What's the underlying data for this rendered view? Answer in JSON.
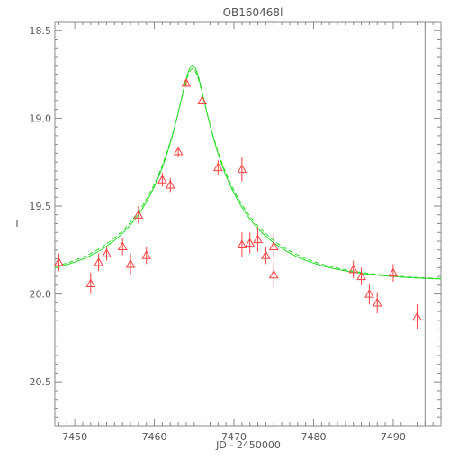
{
  "chart_data": {
    "type": "scatter",
    "title": "OB160468l",
    "xlabel": "JD - 2450000",
    "ylabel": "I",
    "xlim": [
      7447.5,
      7496
    ],
    "ylim": [
      20.75,
      18.45
    ],
    "y_inverted": true,
    "x_ticks": [
      7450,
      7460,
      7470,
      7480,
      7490
    ],
    "y_ticks": [
      18.5,
      19.0,
      19.5,
      20.0,
      20.5
    ],
    "x_tick_labels": [
      "7450",
      "7460",
      "7470",
      "7480",
      "7490"
    ],
    "y_tick_labels": [
      "18.5",
      "19.0",
      "19.5",
      "20.0",
      "20.5"
    ],
    "grid": false,
    "reference_line_x": 7494,
    "series": [
      {
        "kind": "points",
        "marker": "triangle-open",
        "color": "#ff4040",
        "points": [
          {
            "x": 7448.0,
            "y": 19.82,
            "err": 0.05
          },
          {
            "x": 7452.0,
            "y": 19.94,
            "err": 0.06
          },
          {
            "x": 7453.0,
            "y": 19.82,
            "err": 0.05
          },
          {
            "x": 7454.0,
            "y": 19.77,
            "err": 0.04
          },
          {
            "x": 7456.0,
            "y": 19.73,
            "err": 0.05
          },
          {
            "x": 7457.0,
            "y": 19.83,
            "err": 0.06
          },
          {
            "x": 7458.0,
            "y": 19.55,
            "err": 0.05
          },
          {
            "x": 7459.0,
            "y": 19.78,
            "err": 0.05
          },
          {
            "x": 7461.0,
            "y": 19.35,
            "err": 0.04
          },
          {
            "x": 7462.0,
            "y": 19.38,
            "err": 0.04
          },
          {
            "x": 7463.0,
            "y": 19.19,
            "err": 0.03
          },
          {
            "x": 7464.0,
            "y": 18.8,
            "err": 0.02
          },
          {
            "x": 7466.0,
            "y": 18.9,
            "err": 0.02
          },
          {
            "x": 7468.0,
            "y": 19.28,
            "err": 0.04
          },
          {
            "x": 7471.0,
            "y": 19.72,
            "err": 0.07
          },
          {
            "x": 7471.0,
            "y": 19.29,
            "err": 0.07
          },
          {
            "x": 7472.0,
            "y": 19.71,
            "err": 0.06
          },
          {
            "x": 7473.0,
            "y": 19.69,
            "err": 0.07
          },
          {
            "x": 7474.0,
            "y": 19.78,
            "err": 0.05
          },
          {
            "x": 7475.0,
            "y": 19.73,
            "err": 0.07
          },
          {
            "x": 7475.0,
            "y": 19.89,
            "err": 0.07
          },
          {
            "x": 7485.0,
            "y": 19.86,
            "err": 0.05
          },
          {
            "x": 7486.0,
            "y": 19.9,
            "err": 0.05
          },
          {
            "x": 7487.0,
            "y": 20.0,
            "err": 0.06
          },
          {
            "x": 7488.0,
            "y": 20.05,
            "err": 0.06
          },
          {
            "x": 7490.0,
            "y": 19.88,
            "err": 0.05
          },
          {
            "x": 7493.0,
            "y": 20.13,
            "err": 0.07
          }
        ]
      },
      {
        "kind": "model-curve",
        "style": "solid",
        "color": "#22dd22",
        "peak_x": 7464.8,
        "peak_y": 18.7,
        "baseline_y": 19.93,
        "x_range": [
          7447.5,
          7496
        ]
      },
      {
        "kind": "model-curve",
        "style": "dashed",
        "color": "#22dd22",
        "peak_x": 7464.8,
        "peak_y": 18.72,
        "baseline_y": 19.93,
        "x_range": [
          7447.5,
          7496
        ]
      }
    ]
  }
}
